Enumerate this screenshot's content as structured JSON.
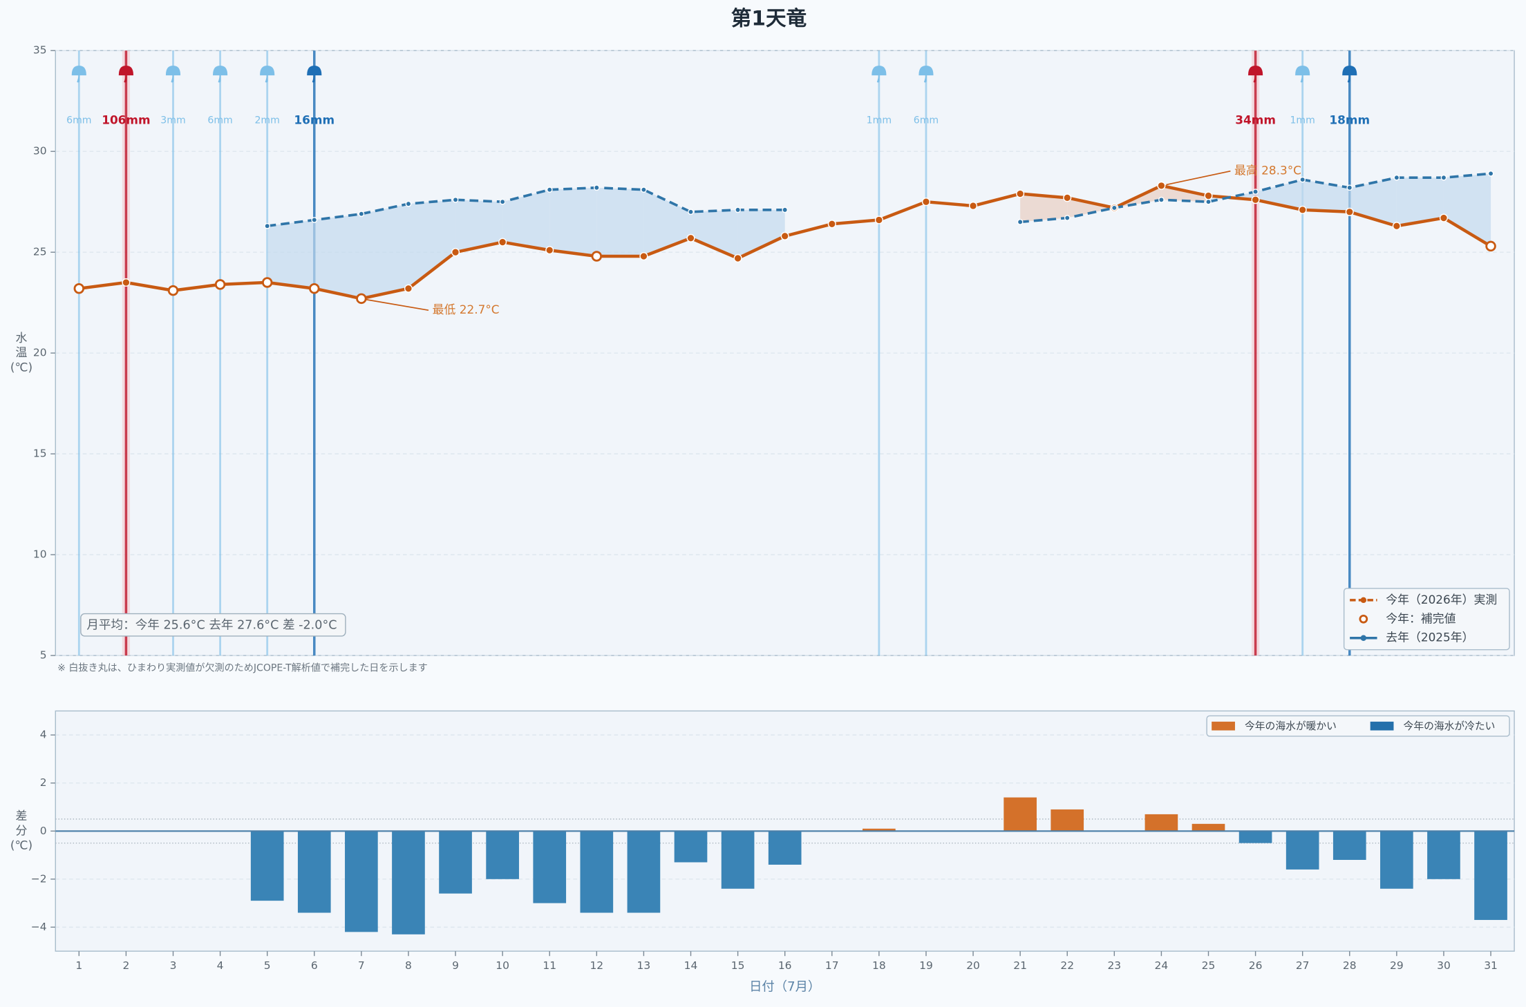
{
  "chart_data": [
    {
      "type": "line",
      "title": "第1天竜",
      "ylabel_lines": [
        "水",
        "温",
        "(℃)"
      ],
      "x": [
        1,
        2,
        3,
        4,
        5,
        6,
        7,
        8,
        9,
        10,
        11,
        12,
        13,
        14,
        15,
        16,
        17,
        18,
        19,
        20,
        21,
        22,
        23,
        24,
        25,
        26,
        27,
        28,
        29,
        30,
        31
      ],
      "xlim": [
        0.5,
        31.5
      ],
      "ylim": [
        5,
        35
      ],
      "yticks": [
        5,
        10,
        15,
        20,
        25,
        30,
        35
      ],
      "grid": true,
      "legend": "lower right",
      "series": [
        {
          "name": "今年（2026年）実測",
          "color": "#c85a12",
          "values": [
            23.2,
            23.5,
            23.1,
            23.4,
            23.5,
            23.2,
            22.7,
            23.2,
            25.0,
            25.5,
            25.1,
            24.8,
            24.8,
            25.7,
            24.7,
            25.8,
            26.4,
            26.6,
            27.5,
            27.3,
            27.9,
            27.7,
            27.2,
            28.3,
            27.8,
            27.6,
            27.1,
            27.0,
            26.3,
            26.7,
            25.3
          ],
          "imputed": [
            true,
            false,
            true,
            true,
            true,
            true,
            true,
            false,
            false,
            false,
            false,
            true,
            false,
            false,
            false,
            false,
            false,
            false,
            false,
            false,
            false,
            false,
            false,
            false,
            false,
            false,
            false,
            false,
            false,
            false,
            true
          ],
          "imputed_name": "今年：補完値"
        },
        {
          "name": "去年（2025年）",
          "color": "#2f75a8",
          "dashed": true,
          "values": [
            null,
            null,
            null,
            null,
            26.3,
            26.6,
            26.9,
            27.4,
            27.6,
            27.5,
            28.1,
            28.2,
            28.1,
            27.0,
            27.1,
            27.1,
            null,
            null,
            null,
            null,
            26.5,
            26.7,
            27.2,
            27.6,
            27.5,
            28.0,
            28.6,
            28.2,
            28.7,
            28.7,
            28.9
          ]
        }
      ],
      "annotations": {
        "min": "最低 22.7°C",
        "max": "最高 28.3°C"
      },
      "summary": "月平均：今年 25.6°C  去年 27.6°C  差 -2.0°C",
      "note": "※ 白抜き丸は、ひまわり実測値が欠測のためJCOPE-T解析値で補完した日を示します",
      "rain": {
        "days": [
          1,
          2,
          3,
          4,
          5,
          6,
          18,
          19,
          26,
          27,
          28
        ],
        "values": [
          6,
          106,
          3,
          6,
          2,
          16,
          1,
          6,
          34,
          1,
          18
        ],
        "value_labels": [
          "6mm",
          "106mm",
          "3mm",
          "6mm",
          "2mm",
          "16mm",
          "1mm",
          "6mm",
          "34mm",
          "1mm",
          "18mm"
        ],
        "colors": [
          "#7dbfe8",
          "#c0152a",
          "#7dbfe8",
          "#7dbfe8",
          "#7dbfe8",
          "#1f6fb5",
          "#7dbfe8",
          "#7dbfe8",
          "#c0152a",
          "#7dbfe8",
          "#1f6fb5"
        ]
      }
    },
    {
      "type": "bar",
      "ylabel_lines": [
        "差",
        "分",
        "(℃)"
      ],
      "xlabel": "日付（7月）",
      "x": [
        1,
        2,
        3,
        4,
        5,
        6,
        7,
        8,
        9,
        10,
        11,
        12,
        13,
        14,
        15,
        16,
        17,
        18,
        19,
        20,
        21,
        22,
        23,
        24,
        25,
        26,
        27,
        28,
        29,
        30,
        31
      ],
      "xlim": [
        0.5,
        31.5
      ],
      "ylim": [
        -5,
        5
      ],
      "yticks": [
        {
          "value": -4,
          "label": "−4"
        },
        {
          "value": -2,
          "label": "−2"
        },
        0,
        2,
        4
      ],
      "grid": true,
      "values": [
        null,
        null,
        null,
        null,
        -2.9,
        -3.4,
        -4.2,
        -4.3,
        -2.6,
        -2.0,
        -3.0,
        -3.4,
        -3.4,
        -1.3,
        -2.4,
        -1.4,
        null,
        0.1,
        null,
        null,
        1.4,
        0.9,
        0,
        0.7,
        0.3,
        -0.5,
        -1.6,
        -1.2,
        -2.4,
        -2.0,
        -3.7
      ],
      "colors": {
        "positive": "#d4712a",
        "negative": "#3a84b6"
      },
      "legend": "upper right",
      "legend_entries": [
        {
          "name": "今年の海水が暖かい",
          "color": "#d4712a"
        },
        {
          "name": "今年の海水が冷たい",
          "color": "#2470ab"
        }
      ],
      "reference_lines": [
        -0.5,
        0.5
      ]
    }
  ]
}
